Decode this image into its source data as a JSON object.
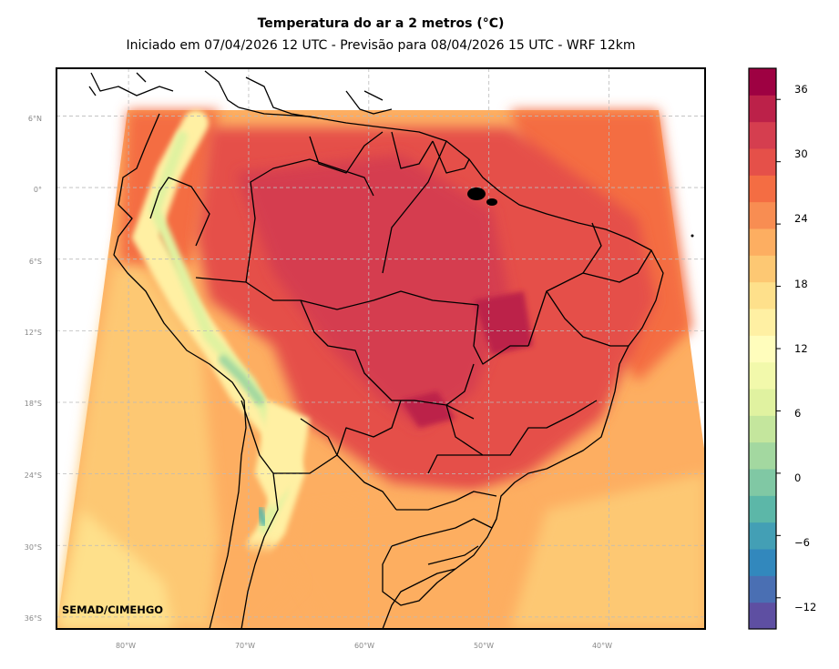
{
  "title": "Temperatura do ar a 2 metros (°C)",
  "subtitle": "Iniciado em 07/04/2026 12 UTC - Previsão para 08/04/2026 15 UTC - WRF 12km",
  "credit": "SEMAD/CIMEHGO",
  "lat_labels": [
    "6°N",
    "0°",
    "6°S",
    "12°S",
    "18°S",
    "24°S",
    "30°S",
    "36°S"
  ],
  "lon_labels": [
    "80°W",
    "70°W",
    "60°W",
    "50°W",
    "40°W"
  ],
  "colorbar": {
    "ticks": [
      "36",
      "30",
      "24",
      "18",
      "12",
      "6",
      "0",
      "−12"
    ],
    "extra_tick": "−6",
    "range": [
      -15,
      39
    ],
    "colors": [
      "#5e4fa2",
      "#4a6fb3",
      "#3288bd",
      "#439fb5",
      "#5cb7a8",
      "#80c8a4",
      "#a3d8a0",
      "#c4e69d",
      "#e0f2a0",
      "#f2f9ab",
      "#fffdbc",
      "#fff0a3",
      "#fee08b",
      "#fdc873",
      "#fdae61",
      "#f88d52",
      "#f46d43",
      "#e55049",
      "#d53e4f",
      "#bc2149",
      "#9e0142"
    ]
  },
  "map": {
    "extent": {
      "lon": [
        -86,
        -32
      ],
      "lat": [
        -37,
        10
      ]
    },
    "grid_lon": [
      -80,
      -70,
      -60,
      -50,
      -40
    ],
    "grid_lat": [
      6,
      0,
      -6,
      -12,
      -18,
      -24,
      -30,
      -36
    ]
  }
}
